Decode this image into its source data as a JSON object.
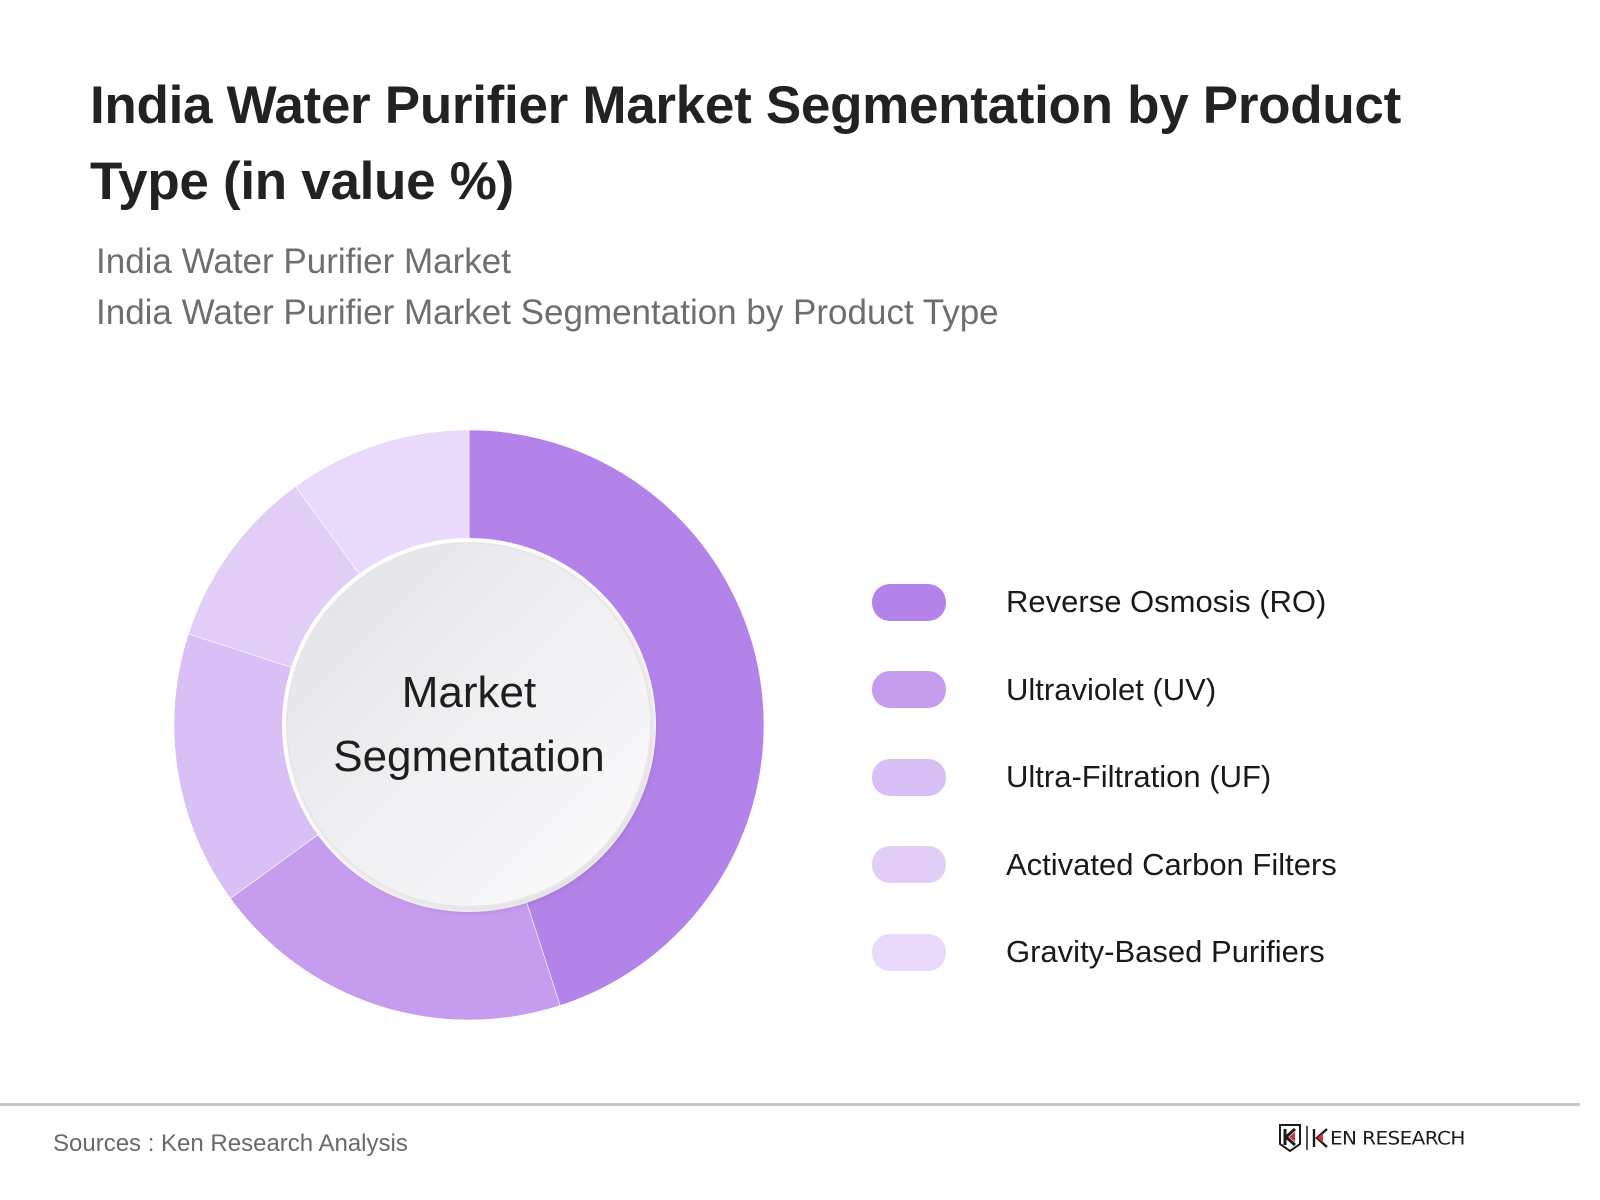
{
  "header": {
    "title_line1": "India Water Purifier Market Segmentation by Product",
    "title_line2": "Type (in value %)",
    "subtitle_line1": "India Water Purifier Market",
    "subtitle_line2": "India Water Purifier Market Segmentation by Product Type"
  },
  "chart": {
    "center_label_line1": "Market",
    "center_label_line2": "Segmentation"
  },
  "legend": [
    {
      "label": "Reverse Osmosis (RO)",
      "color": "#b383ea"
    },
    {
      "label": "Ultraviolet (UV)",
      "color": "#c69cee"
    },
    {
      "label": "Ultra-Filtration (UF)",
      "color": "#d8bff5"
    },
    {
      "label": "Activated Carbon Filters",
      "color": "#e2cdf7"
    },
    {
      "label": "Gravity-Based Purifiers",
      "color": "#e9d9fa"
    }
  ],
  "footer": {
    "sources": "Sources : Ken Research Analysis",
    "logo_text": "KEN RESEARCH",
    "logo_accent": "#d0303a"
  },
  "chart_data": {
    "type": "pie",
    "title": "India Water Purifier Market Segmentation by Product Type (in value %)",
    "subtitle": "India Water Purifier Market Segmentation by Product Type",
    "center_label": "Market Segmentation",
    "donut": true,
    "categories": [
      "Reverse Osmosis (RO)",
      "Ultraviolet (UV)",
      "Ultra-Filtration (UF)",
      "Activated Carbon Filters",
      "Gravity-Based Purifiers"
    ],
    "values": [
      45,
      20,
      15,
      10,
      10
    ],
    "unit": "%",
    "colors": [
      "#b383ea",
      "#c69cee",
      "#d8bff5",
      "#e2cdf7",
      "#e9d9fa"
    ],
    "start_angle_deg": 0,
    "direction": "clockwise",
    "legend_position": "right",
    "data_labels": false
  }
}
